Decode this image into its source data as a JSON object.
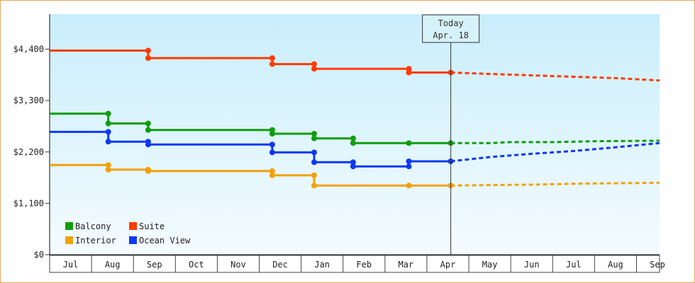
{
  "chart_data": {
    "type": "line",
    "title": "",
    "xlabel": "",
    "ylabel": "",
    "x_unit": "month-index (0 = Jul, 9 = Apr, 14 = Sep)",
    "xlim": [
      0,
      14.55
    ],
    "ylim": [
      0,
      5150
    ],
    "y_ticks": [
      0,
      1100,
      2200,
      3300,
      4400
    ],
    "y_tick_labels": [
      "$0",
      "$1,100",
      "$2,200",
      "$3,300",
      "$4,400"
    ],
    "x_categories": [
      "Jul",
      "Aug",
      "Sep",
      "Oct",
      "Nov",
      "Dec",
      "Jan",
      "Feb",
      "Mar",
      "Apr",
      "May",
      "Jun",
      "Jul",
      "Aug",
      "Sep"
    ],
    "grid": false,
    "legend_placement": "bottom-left",
    "today": {
      "title": "Today",
      "date": "Apr. 18",
      "x": 9.57
    },
    "series": [
      {
        "name": "Balcony",
        "color": "#0e9e0e",
        "historical": [
          [
            0,
            3020
          ],
          [
            1.4,
            3020
          ],
          [
            1.4,
            2810
          ],
          [
            2.35,
            2810
          ],
          [
            2.35,
            2670
          ],
          [
            5.31,
            2670
          ],
          [
            5.31,
            2590
          ],
          [
            6.31,
            2590
          ],
          [
            6.31,
            2490
          ],
          [
            7.24,
            2490
          ],
          [
            7.24,
            2390
          ],
          [
            8.57,
            2390
          ],
          [
            9.57,
            2390
          ]
        ],
        "forecast": [
          [
            9.57,
            2390
          ],
          [
            10.5,
            2390
          ],
          [
            11.0,
            2410
          ],
          [
            12.0,
            2410
          ],
          [
            13.0,
            2430
          ],
          [
            14.55,
            2440
          ]
        ]
      },
      {
        "name": "Suite",
        "color": "#ff3a00",
        "historical": [
          [
            0,
            4370
          ],
          [
            2.35,
            4370
          ],
          [
            2.35,
            4210
          ],
          [
            5.31,
            4210
          ],
          [
            5.31,
            4080
          ],
          [
            6.31,
            4080
          ],
          [
            6.31,
            3980
          ],
          [
            8.57,
            3980
          ],
          [
            8.57,
            3900
          ],
          [
            9.57,
            3900
          ]
        ],
        "forecast": [
          [
            9.57,
            3900
          ],
          [
            10.5,
            3870
          ],
          [
            11.5,
            3840
          ],
          [
            12.5,
            3810
          ],
          [
            13.5,
            3780
          ],
          [
            14.55,
            3730
          ]
        ]
      },
      {
        "name": "Interior",
        "color": "#f2a10a",
        "historical": [
          [
            0,
            1920
          ],
          [
            1.4,
            1920
          ],
          [
            1.4,
            1820
          ],
          [
            2.35,
            1820
          ],
          [
            2.35,
            1790
          ],
          [
            5.31,
            1790
          ],
          [
            5.31,
            1700
          ],
          [
            6.31,
            1700
          ],
          [
            6.31,
            1480
          ],
          [
            8.57,
            1480
          ],
          [
            9.57,
            1480
          ]
        ],
        "forecast": [
          [
            9.57,
            1480
          ],
          [
            10.5,
            1490
          ],
          [
            11.5,
            1500
          ],
          [
            12.5,
            1520
          ],
          [
            13.5,
            1530
          ],
          [
            14.55,
            1540
          ]
        ]
      },
      {
        "name": "Ocean View",
        "color": "#0e38f2",
        "historical": [
          [
            0,
            2630
          ],
          [
            1.4,
            2630
          ],
          [
            1.4,
            2420
          ],
          [
            2.35,
            2420
          ],
          [
            2.35,
            2360
          ],
          [
            5.31,
            2360
          ],
          [
            5.31,
            2190
          ],
          [
            6.31,
            2190
          ],
          [
            6.31,
            1980
          ],
          [
            7.24,
            1980
          ],
          [
            7.24,
            1890
          ],
          [
            8.57,
            1890
          ],
          [
            8.57,
            2000
          ],
          [
            9.57,
            2000
          ]
        ],
        "forecast": [
          [
            9.57,
            2000
          ],
          [
            10.5,
            2090
          ],
          [
            11.5,
            2160
          ],
          [
            12.5,
            2220
          ],
          [
            13.5,
            2300
          ],
          [
            14.55,
            2390
          ]
        ]
      }
    ]
  }
}
